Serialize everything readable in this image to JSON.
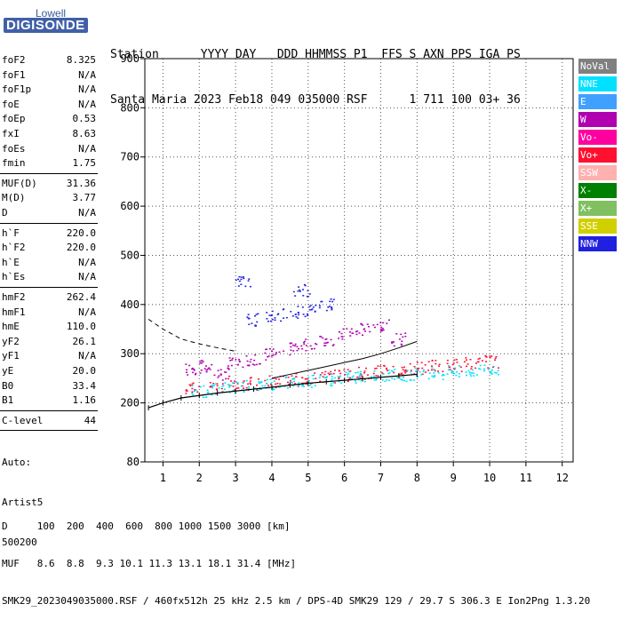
{
  "logo": {
    "brand": "Lowell",
    "name": "DIGISONDE"
  },
  "header": {
    "line1": "Station      YYYY DAY   DDD HHMMSS P1  FFS S AXN PPS IGA PS",
    "line2": "Santa Maria 2023 Feb18 049 035000 RSF      1 711 100 03+ 36"
  },
  "params": [
    {
      "name": "foF2",
      "value": "8.325"
    },
    {
      "name": "foF1",
      "value": "N/A"
    },
    {
      "name": "foF1p",
      "value": "N/A"
    },
    {
      "name": "foE",
      "value": "N/A"
    },
    {
      "name": "foEp",
      "value": "0.53"
    },
    {
      "name": "fxI",
      "value": "8.63"
    },
    {
      "name": "foEs",
      "value": "N/A"
    },
    {
      "name": "fmin",
      "value": "1.75"
    },
    {
      "name": "MUF(D)",
      "value": "31.36"
    },
    {
      "name": "M(D)",
      "value": "3.77"
    },
    {
      "name": "D",
      "value": "N/A"
    },
    {
      "name": "h`F",
      "value": "220.0"
    },
    {
      "name": "h`F2",
      "value": "220.0"
    },
    {
      "name": "h`E",
      "value": "N/A"
    },
    {
      "name": "h`Es",
      "value": "N/A"
    },
    {
      "name": "hmF2",
      "value": "262.4"
    },
    {
      "name": "hmF1",
      "value": "N/A"
    },
    {
      "name": "hmE",
      "value": "110.0"
    },
    {
      "name": "yF2",
      "value": "26.1"
    },
    {
      "name": "yF1",
      "value": "N/A"
    },
    {
      "name": "yE",
      "value": "20.0"
    },
    {
      "name": "B0",
      "value": "33.4"
    },
    {
      "name": "B1",
      "value": "1.16"
    },
    {
      "name": "C-level",
      "value": "44"
    }
  ],
  "auto": {
    "line1": "Auto:",
    "line2": "Artist5",
    "line3": "500200"
  },
  "legend": [
    {
      "label": "NoVal",
      "color": "#808080"
    },
    {
      "label": "NNE",
      "color": "#00e0ff"
    },
    {
      "label": "E",
      "color": "#40a0ff"
    },
    {
      "label": "W",
      "color": "#b000b0"
    },
    {
      "label": "Vo-",
      "color": "#ff00a0"
    },
    {
      "label": "Vo+",
      "color": "#ff1030"
    },
    {
      "label": "SSW",
      "color": "#ffb0b0"
    },
    {
      "label": "X-",
      "color": "#008000"
    },
    {
      "label": "X+",
      "color": "#80c060"
    },
    {
      "label": "SSE",
      "color": "#d0d000"
    },
    {
      "label": "NNW",
      "color": "#2020e0"
    }
  ],
  "footer": {
    "line1": "D     100  200  400  600  800 1000 1500 3000 [km]",
    "line2": "MUF   8.6  8.8  9.3 10.1 11.3 13.1 18.1 31.4 [MHz]",
    "line3": "SMK29_2023049035000.RSF / 460fx512h 25 kHz 2.5 km / DPS-4D SMK29 129 / 29.7 S 306.3 E Ion2Png 1.3.20"
  },
  "chart_data": {
    "type": "scatter",
    "title": "",
    "xlabel": "",
    "ylabel": "",
    "xlim": [
      0.5,
      12.3
    ],
    "ylim": [
      80,
      900
    ],
    "x_ticks": [
      1,
      2,
      3,
      4,
      5,
      6,
      7,
      8,
      9,
      10,
      11,
      12
    ],
    "y_ticks": [
      80,
      200,
      300,
      400,
      500,
      600,
      700,
      800,
      900
    ],
    "grid": true,
    "series": [
      {
        "name": "W",
        "color": "#b000b0",
        "x": [
          1.8,
          2.2,
          2.6,
          3.0,
          3.5,
          4.0,
          4.5,
          5.0,
          5.5,
          6.0,
          6.5,
          7.0,
          7.5
        ],
        "y": [
          270,
          275,
          260,
          280,
          290,
          300,
          310,
          320,
          330,
          340,
          350,
          360,
          330
        ]
      },
      {
        "name": "Vo+",
        "color": "#ff1030",
        "x": [
          1.8,
          2.5,
          3.0,
          3.5,
          4.0,
          4.5,
          5.0,
          5.5,
          6.0,
          6.5,
          7.0,
          7.5,
          8.0,
          8.5,
          9.0,
          9.5,
          10.0
        ],
        "y": [
          230,
          235,
          238,
          240,
          245,
          248,
          250,
          255,
          258,
          262,
          265,
          268,
          272,
          275,
          278,
          282,
          285
        ]
      },
      {
        "name": "NNE",
        "color": "#00e0ff",
        "x": [
          2.0,
          2.5,
          3.0,
          3.5,
          4.0,
          4.5,
          5.0,
          5.5,
          6.0,
          6.5,
          7.0,
          7.5,
          8.0,
          8.5,
          9.0,
          9.5,
          10.0
        ],
        "y": [
          225,
          230,
          234,
          237,
          240,
          243,
          246,
          249,
          252,
          254,
          256,
          258,
          260,
          262,
          264,
          266,
          268
        ]
      },
      {
        "name": "NNW",
        "color": "#2020e0",
        "x": [
          3.5,
          4.0,
          4.5,
          5.0,
          5.5,
          3.2,
          4.8
        ],
        "y": [
          370,
          380,
          385,
          390,
          400,
          450,
          430
        ]
      }
    ],
    "traces": [
      {
        "name": "o-trace",
        "x": [
          0.6,
          1.0,
          1.5,
          2.0,
          2.5,
          3.0,
          3.5,
          4.0,
          4.5,
          5.0,
          5.5,
          6.0,
          6.5,
          7.0,
          7.5,
          8.0
        ],
        "y": [
          190,
          200,
          210,
          215,
          220,
          224,
          228,
          232,
          236,
          240,
          243,
          246,
          249,
          252,
          255,
          258
        ]
      },
      {
        "name": "x-trace",
        "x": [
          4.0,
          4.5,
          5.0,
          5.5,
          6.0,
          6.5,
          7.0,
          7.5,
          8.0
        ],
        "y": [
          250,
          258,
          266,
          274,
          282,
          290,
          300,
          312,
          325
        ]
      },
      {
        "name": "profile",
        "x": [
          0.6,
          1.0,
          1.5,
          2.0,
          2.5,
          3.0
        ],
        "y": [
          370,
          350,
          330,
          320,
          312,
          305
        ]
      }
    ]
  }
}
